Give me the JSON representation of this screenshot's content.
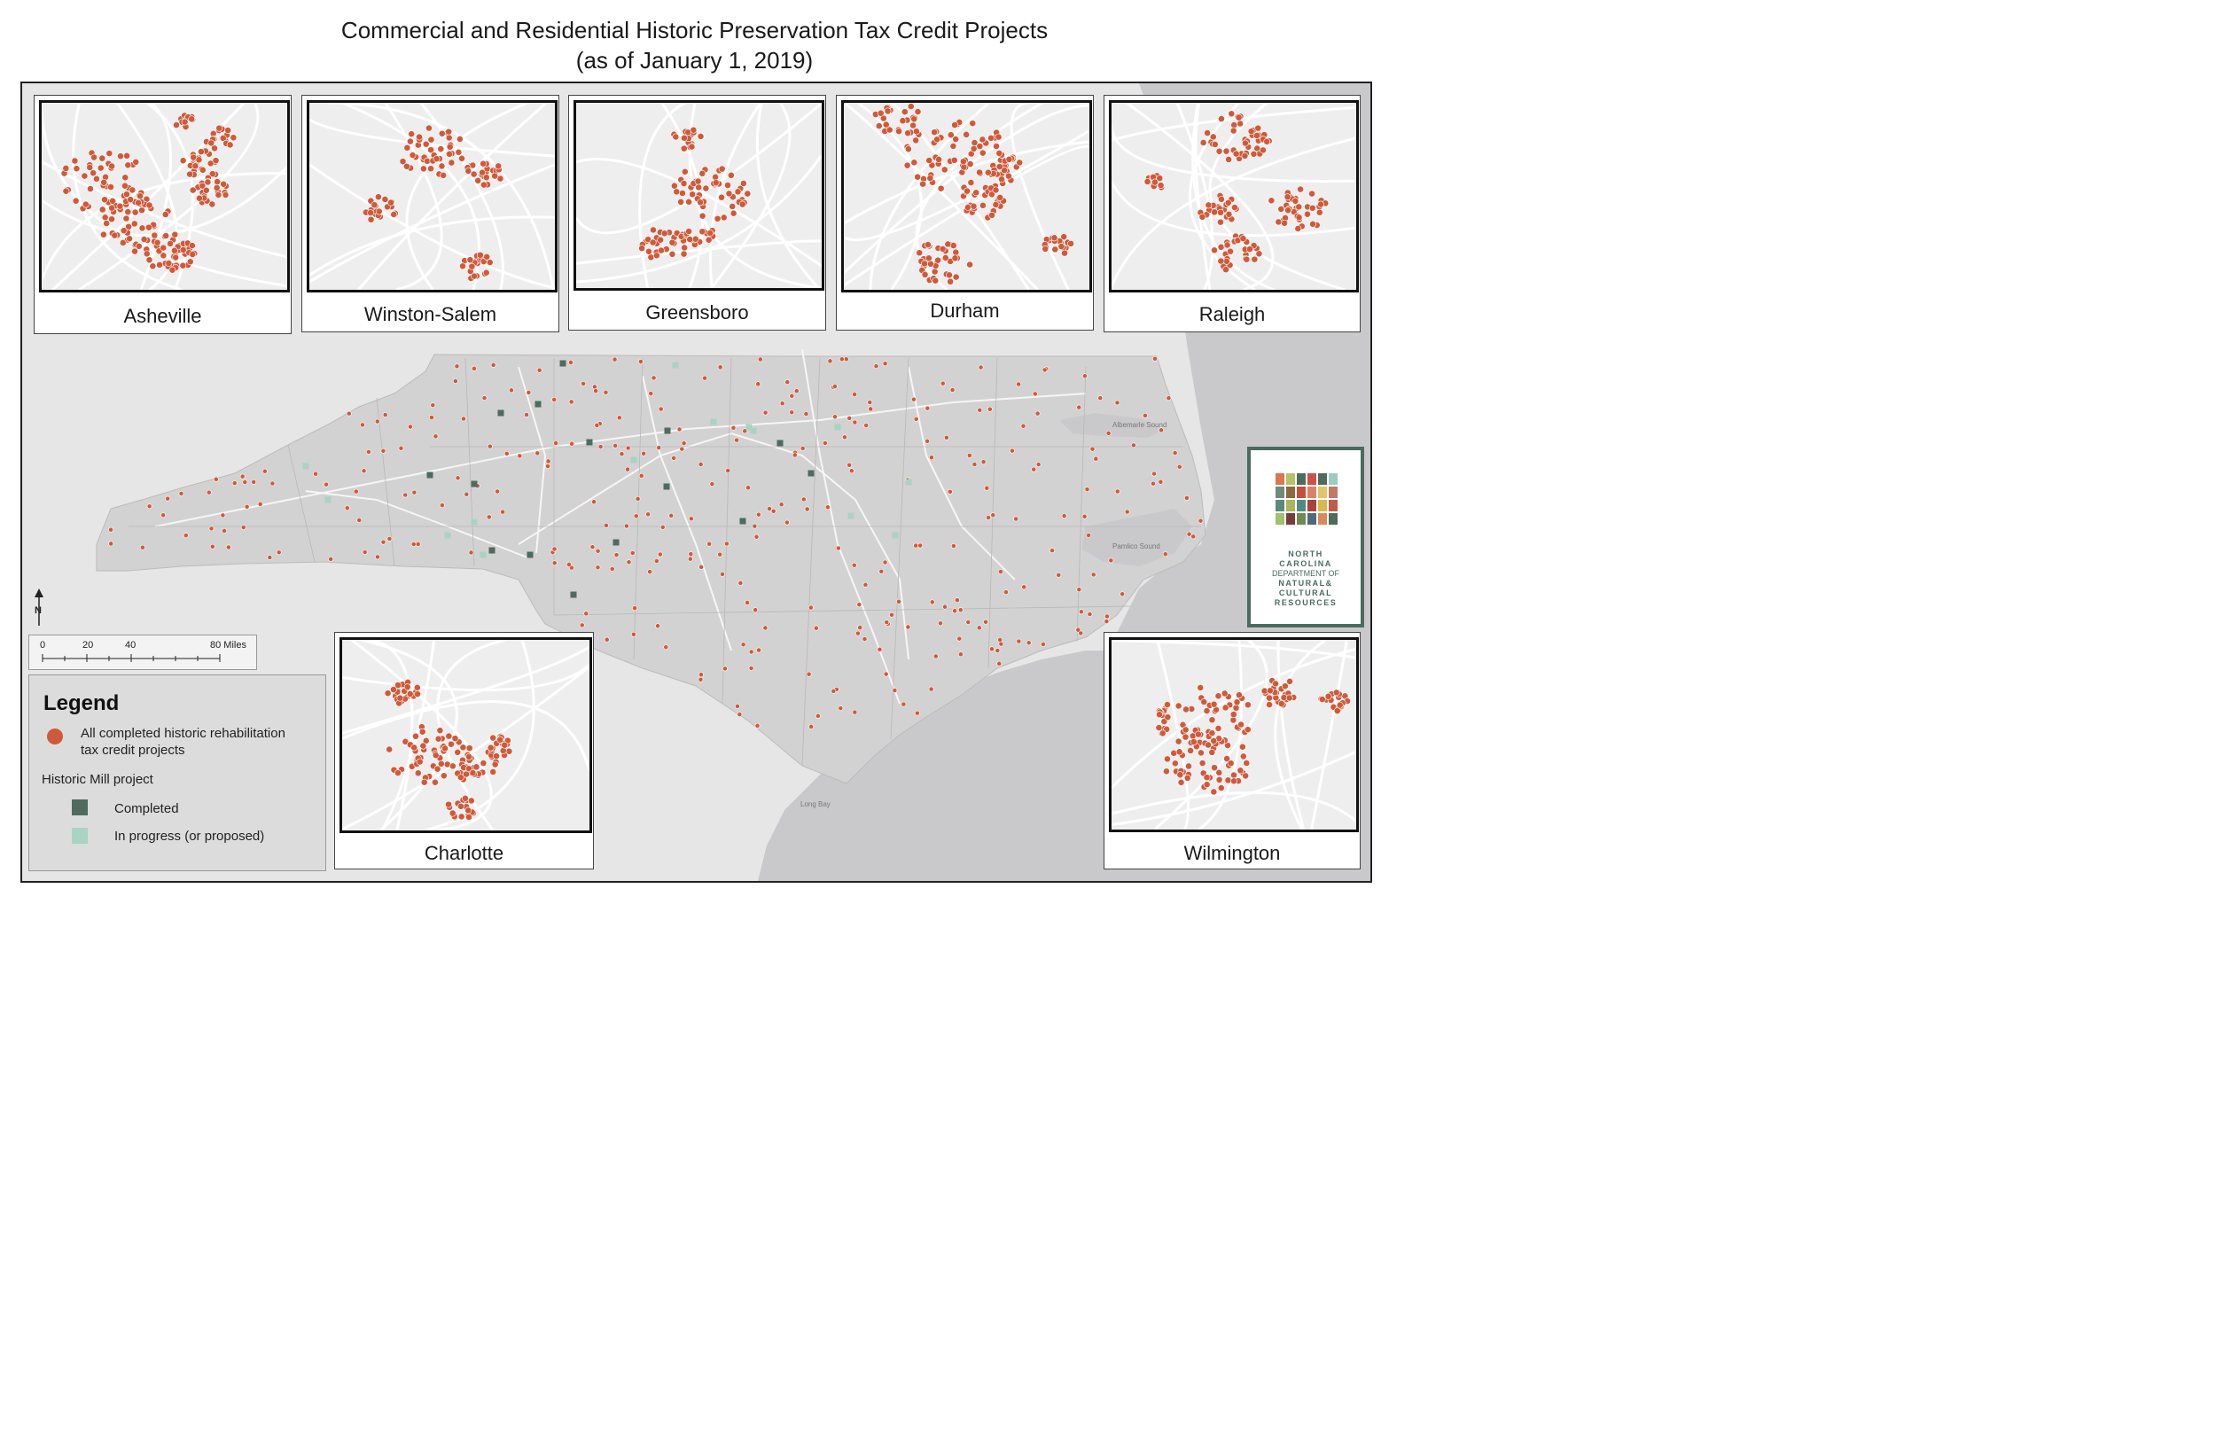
{
  "title_line1": "Commercial and Residential Historic Preservation Tax Credit Projects",
  "title_line2": "(as of January 1, 2019)",
  "insets": [
    {
      "id": "asheville",
      "label": "Asheville"
    },
    {
      "id": "winston",
      "label": "Winston-Salem"
    },
    {
      "id": "greensboro",
      "label": "Greensboro"
    },
    {
      "id": "durham",
      "label": "Durham"
    },
    {
      "id": "raleigh",
      "label": "Raleigh"
    },
    {
      "id": "charlotte",
      "label": "Charlotte"
    },
    {
      "id": "wilmington",
      "label": "Wilmington"
    }
  ],
  "legend": {
    "title": "Legend",
    "item1": "All completed historic rehabilitation",
    "item1b": "tax credit projects",
    "group": "Historic Mill project",
    "completed": "Completed",
    "inprogress": "In progress (or proposed)"
  },
  "scale": {
    "l0": "0",
    "l20": "20",
    "l40": "40",
    "l80": "80 Miles"
  },
  "water_labels": {
    "albemarle": "Albemarle Sound",
    "pamlico": "Pamlico Sound",
    "longbay": "Long Bay"
  },
  "dnr": {
    "l1": "NORTH",
    "l2": "CAROLINA",
    "l3": "DEPARTMENT OF",
    "l4": "NATURAL&",
    "l5": "CULTURAL",
    "l6": "RESOURCES"
  },
  "colors": {
    "project": "#cf5a3b",
    "completed_mill": "#4f6b5d",
    "inprogress_mill": "#a9d3c3",
    "state": "#d2d2d2",
    "ocean": "#c9c9cc",
    "land": "#e6e6e6"
  }
}
